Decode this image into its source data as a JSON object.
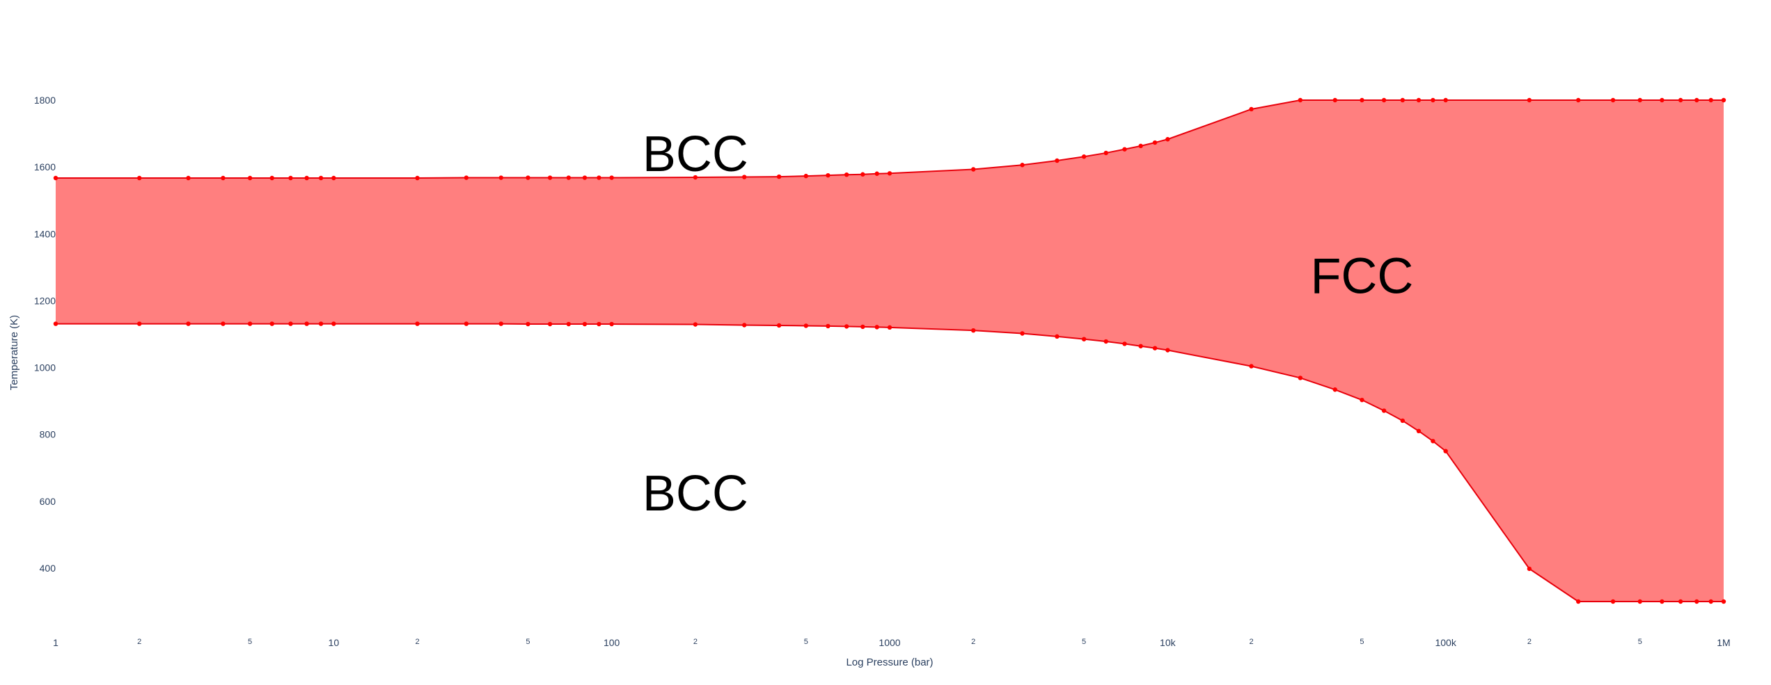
{
  "chart_data": {
    "type": "area",
    "title": "",
    "xlabel": "Log Pressure (bar)",
    "ylabel": "Temperature (K)",
    "x_scale": "log",
    "xlim": [
      1,
      1000000
    ],
    "ylim": [
      230,
      1850
    ],
    "grid": false,
    "legend": "none",
    "fill_color": "#ff7f7f",
    "line_color": "#e8000b",
    "marker_color": "#ff0000",
    "x_ticks": [
      {
        "value": 1,
        "label": "1",
        "major": true
      },
      {
        "value": 2,
        "label": "2",
        "major": false
      },
      {
        "value": 5,
        "label": "5",
        "major": false
      },
      {
        "value": 10,
        "label": "10",
        "major": true
      },
      {
        "value": 20,
        "label": "2",
        "major": false
      },
      {
        "value": 50,
        "label": "5",
        "major": false
      },
      {
        "value": 100,
        "label": "100",
        "major": true
      },
      {
        "value": 200,
        "label": "2",
        "major": false
      },
      {
        "value": 500,
        "label": "5",
        "major": false
      },
      {
        "value": 1000,
        "label": "1000",
        "major": true
      },
      {
        "value": 2000,
        "label": "2",
        "major": false
      },
      {
        "value": 5000,
        "label": "5",
        "major": false
      },
      {
        "value": 10000,
        "label": "10k",
        "major": true
      },
      {
        "value": 20000,
        "label": "2",
        "major": false
      },
      {
        "value": 50000,
        "label": "5",
        "major": false
      },
      {
        "value": 100000,
        "label": "100k",
        "major": true
      },
      {
        "value": 200000,
        "label": "2",
        "major": false
      },
      {
        "value": 500000,
        "label": "5",
        "major": false
      },
      {
        "value": 1000000,
        "label": "1M",
        "major": true
      }
    ],
    "y_ticks": [
      {
        "value": 400,
        "label": "400"
      },
      {
        "value": 600,
        "label": "600"
      },
      {
        "value": 800,
        "label": "800"
      },
      {
        "value": 1000,
        "label": "1000"
      },
      {
        "value": 1200,
        "label": "1200"
      },
      {
        "value": 1400,
        "label": "1400"
      },
      {
        "value": 1600,
        "label": "1600"
      },
      {
        "value": 1800,
        "label": "1800"
      }
    ],
    "series": [
      {
        "x": [
          1,
          2,
          3,
          4,
          5,
          6,
          7,
          8,
          9,
          10,
          20,
          30,
          40,
          50,
          60,
          70,
          80,
          90,
          100,
          200,
          300,
          400,
          500,
          600,
          700,
          800,
          900,
          1000,
          2000,
          3000,
          4000,
          5000,
          6000,
          7000,
          8000,
          9000,
          10000,
          20000,
          30000,
          40000,
          50000,
          60000,
          70000,
          80000,
          90000,
          100000,
          200000,
          300000,
          400000,
          500000,
          600000,
          700000,
          800000,
          900000,
          1000000
        ],
        "y": [
          1567,
          1567,
          1567,
          1567,
          1567,
          1567,
          1567,
          1567,
          1567,
          1567,
          1567,
          1568,
          1568,
          1568,
          1568,
          1568,
          1568,
          1568,
          1568,
          1569,
          1570,
          1571,
          1573,
          1575,
          1577,
          1578,
          1580,
          1581,
          1593,
          1606,
          1619,
          1631,
          1642,
          1653,
          1663,
          1673,
          1683,
          1773,
          1800,
          1800,
          1800,
          1800,
          1800,
          1800,
          1800,
          1800,
          1800,
          1800,
          1800,
          1800,
          1800,
          1800,
          1800,
          1800,
          1800
        ]
      },
      {
        "x": [
          1,
          2,
          3,
          4,
          5,
          6,
          7,
          8,
          9,
          10,
          20,
          30,
          40,
          50,
          60,
          70,
          80,
          90,
          100,
          200,
          300,
          400,
          500,
          600,
          700,
          800,
          900,
          1000,
          2000,
          3000,
          4000,
          5000,
          6000,
          7000,
          8000,
          9000,
          10000,
          20000,
          30000,
          40000,
          50000,
          60000,
          70000,
          80000,
          90000,
          100000,
          200000,
          300000,
          400000,
          500000,
          600000,
          700000,
          800000,
          900000,
          1000000
        ],
        "y": [
          1131,
          1131,
          1131,
          1131,
          1131,
          1131,
          1131,
          1131,
          1131,
          1131,
          1131,
          1131,
          1131,
          1130,
          1130,
          1130,
          1130,
          1130,
          1130,
          1129,
          1127,
          1126,
          1125,
          1124,
          1123,
          1122,
          1121,
          1120,
          1111,
          1102,
          1093,
          1085,
          1078,
          1071,
          1064,
          1058,
          1052,
          1004,
          969,
          934,
          903,
          871,
          841,
          810,
          780,
          750,
          398,
          300,
          300,
          300,
          300,
          300,
          300,
          300,
          300
        ]
      }
    ],
    "annotations": [
      {
        "text": "BCC",
        "x": 200,
        "y": 1640
      },
      {
        "text": "FCC",
        "x": 50000,
        "y": 1275
      },
      {
        "text": "BCC",
        "x": 200,
        "y": 625
      }
    ]
  }
}
